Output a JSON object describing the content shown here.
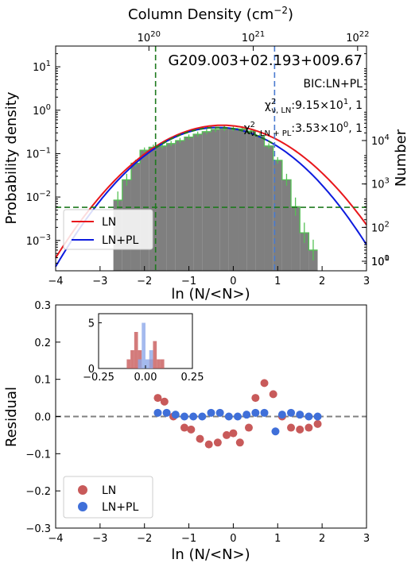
{
  "chart_data": [
    {
      "type": "bar",
      "title": "G209.003+02.193+009.67",
      "xlabel": "ln (N/<N>)",
      "ylabel": "Probability density",
      "ylabel_right": "Number",
      "xlabel_top": "Column Density (cm",
      "xlabel_top_sup": "−2",
      "xlabel_top_close": ")",
      "xlim": [
        -4,
        3
      ],
      "ylim": [
        0.0002,
        30
      ],
      "yscale": "log",
      "x_ticks": [
        "−4",
        "−3",
        "−2",
        "−1",
        "0",
        "1",
        "2",
        "3"
      ],
      "y_ticks": [
        {
          "base": "10",
          "exp": "1",
          "v": 10
        },
        {
          "base": "10",
          "exp": "0",
          "v": 1
        },
        {
          "base": "10",
          "exp": "−1",
          "v": 0.1
        },
        {
          "base": "10",
          "exp": "−2",
          "v": 0.01
        },
        {
          "base": "10",
          "exp": "−3",
          "v": 0.001
        }
      ],
      "right_ticks": [
        {
          "base": "10",
          "exp": "4",
          "v": 0.2
        },
        {
          "base": "10",
          "exp": "3",
          "v": 0.02
        },
        {
          "base": "10",
          "exp": "2",
          "v": 0.002
        },
        {
          "base": "10",
          "exp": "1",
          "v": 0.0002
        },
        {
          "base": "10",
          "exp": "0",
          "v": 2e-05
        }
      ],
      "top_ticks": [
        {
          "base": "10",
          "exp": "20",
          "x": -1.9
        },
        {
          "base": "10",
          "exp": "21",
          "x": 0.45
        },
        {
          "base": "10",
          "exp": "22",
          "x": 2.8
        }
      ],
      "histogram": {
        "edges": [
          -2.7,
          -2.5,
          -2.3,
          -2.1,
          -1.9,
          -1.7,
          -1.5,
          -1.3,
          -1.1,
          -0.9,
          -0.7,
          -0.5,
          -0.3,
          -0.1,
          0.1,
          0.3,
          0.5,
          0.7,
          0.9,
          1.1,
          1.3,
          1.5,
          1.7,
          1.9
        ],
        "density": [
          0.0085,
          0.025,
          0.06,
          0.12,
          0.14,
          0.15,
          0.17,
          0.2,
          0.24,
          0.28,
          0.32,
          0.36,
          0.38,
          0.38,
          0.37,
          0.33,
          0.26,
          0.15,
          0.07,
          0.025,
          0.006,
          0.0015,
          0.0006
        ]
      },
      "series": [
        {
          "name": "LN",
          "color": "#e8161b",
          "peak": 0.45,
          "mu": -0.25,
          "sigma": 1.0
        },
        {
          "name": "LN+PL",
          "color": "#0d1bde",
          "peak": 0.4,
          "mu": -0.35,
          "sigma": 0.95
        }
      ],
      "vlines": [
        {
          "x": -1.75,
          "color": "#1f7a1f"
        },
        {
          "x": 0.93,
          "color": "#4a7bd0"
        }
      ],
      "hline": {
        "y": 0.0058,
        "color": "#1f7a1f"
      },
      "annotations": {
        "bic": "BIC:LN+PL",
        "chi_ln_prefix": "χ",
        "chi_ln_sub": "ν, LN",
        "chi_ln_value": ":9.15×10",
        "chi_ln_exp": "1",
        "chi_ln_tail": ", 1",
        "chi_lnpl_prefix": "χ",
        "chi_lnpl_sub": "ν, LN + PL",
        "chi_lnpl_value": ":3.53×10",
        "chi_lnpl_exp": "0",
        "chi_lnpl_tail": ", 1",
        "sup2": "2"
      },
      "legend": {
        "placement": "lower-left",
        "items": [
          "LN",
          "LN+PL"
        ]
      }
    },
    {
      "type": "scatter",
      "xlabel": "ln (N/<N>)",
      "ylabel": "Residual",
      "xlim": [
        -4,
        3
      ],
      "ylim": [
        -0.3,
        0.3
      ],
      "x_ticks": [
        "−4",
        "−3",
        "−2",
        "−1",
        "0",
        "1",
        "2",
        "3"
      ],
      "y_ticks": [
        "0.3",
        "0.2",
        "0.1",
        "0.0",
        "−0.1",
        "−0.2",
        "−0.3"
      ],
      "series": [
        {
          "name": "LN",
          "color": "#c85a5a",
          "x": [
            -1.7,
            -1.55,
            -1.35,
            -1.1,
            -0.95,
            -0.75,
            -0.55,
            -0.35,
            -0.15,
            0.0,
            0.15,
            0.35,
            0.5,
            0.7,
            0.9,
            1.1,
            1.3,
            1.5,
            1.7,
            1.9
          ],
          "y": [
            0.05,
            0.04,
            0.0,
            -0.03,
            -0.035,
            -0.06,
            -0.075,
            -0.07,
            -0.05,
            -0.045,
            -0.07,
            -0.03,
            0.05,
            0.09,
            0.06,
            0.0,
            -0.03,
            -0.035,
            -0.03,
            -0.02
          ]
        },
        {
          "name": "LN+PL",
          "color": "#3f6fd9",
          "x": [
            -1.7,
            -1.5,
            -1.3,
            -1.1,
            -0.9,
            -0.7,
            -0.5,
            -0.3,
            -0.1,
            0.1,
            0.3,
            0.5,
            0.7,
            0.95,
            1.1,
            1.3,
            1.5,
            1.7,
            1.9
          ],
          "y": [
            0.01,
            0.01,
            0.005,
            0.0,
            0.0,
            0.0,
            0.01,
            0.01,
            0.0,
            0.0,
            0.005,
            0.01,
            0.01,
            -0.04,
            0.005,
            0.01,
            0.005,
            0.0,
            0.0
          ]
        }
      ],
      "zero_line": 0.0,
      "legend": {
        "placement": "lower-left",
        "items": [
          "LN",
          "LN+PL"
        ]
      }
    },
    {
      "type": "histogram",
      "xlim": [
        -0.25,
        0.25
      ],
      "ylim": [
        0,
        6
      ],
      "x_ticks": [
        "−0.25",
        "0.00",
        "0.25"
      ],
      "y_ticks": [
        "5",
        "0"
      ],
      "series": [
        {
          "name": "LN",
          "color": "#c85a5a",
          "x": [
            -0.09,
            -0.07,
            -0.05,
            -0.03,
            0.03,
            0.05,
            0.07,
            0.09
          ],
          "counts": [
            1,
            2,
            4,
            2,
            1,
            3,
            1,
            1
          ]
        },
        {
          "name": "LN+PL",
          "color": "#8da9ea",
          "x": [
            -0.03,
            -0.01,
            0.01,
            0.03
          ],
          "counts": [
            1,
            5,
            1,
            2
          ]
        }
      ]
    }
  ]
}
